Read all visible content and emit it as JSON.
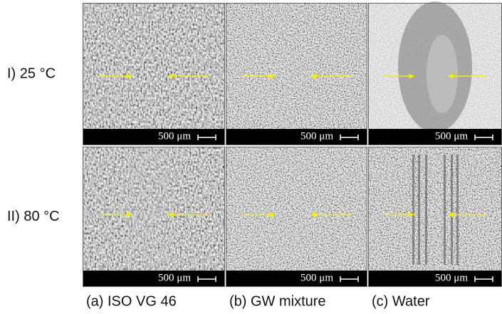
{
  "rows": [
    {
      "label": "I) 25 °C"
    },
    {
      "label": "II) 80 °C"
    }
  ],
  "columns": [
    {
      "label": "(a) ISO VG 46"
    },
    {
      "label": "(b) GW mixture"
    },
    {
      "label": "(c) Water"
    }
  ],
  "panels": [
    [
      {
        "scale_label": "500 μm"
      },
      {
        "scale_label": "500 μm"
      },
      {
        "scale_label": "500 μm"
      }
    ],
    [
      {
        "scale_label": "500 μm"
      },
      {
        "scale_label": "500 μm"
      },
      {
        "scale_label": "500 μm"
      }
    ]
  ]
}
